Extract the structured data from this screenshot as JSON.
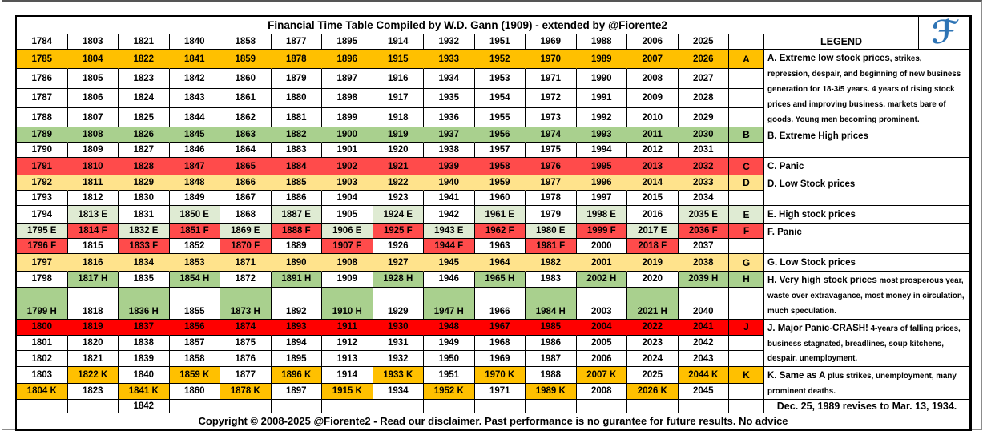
{
  "frame": {
    "title": "Financial Time Table Compiled by W.D. Gann (1909) - extended by @Fiorente2",
    "logo_glyph": "ℱ",
    "legend_header": "LEGEND",
    "footer": "Copyright © 2008-2025 @Fiorente2 -  Read our disclaimer. Past performance is no gurantee for future results. No advice"
  },
  "colors": {
    "A": "#FFC000",
    "B": "#A9D08E",
    "C": "#FF4B4B",
    "D": "#FFE38C",
    "E": "#DFEBD3",
    "F": "#FF4B4B",
    "G": "#FFE38C",
    "H": "#A9D08E",
    "J": "#FF0000",
    "K": "#FFC000",
    "W": "#FFFFFF"
  },
  "header_years": [
    "1784",
    "1803",
    "1821",
    "1840",
    "1858",
    "1877",
    "1895",
    "1914",
    "1932",
    "1951",
    "1969",
    "1988",
    "2006",
    "2025"
  ],
  "rows": [
    {
      "band": "A",
      "letter": "A",
      "letter_color": "A",
      "cells": [
        "1785",
        "1804",
        "1822",
        "1841",
        "1859",
        "1878",
        "1896",
        "1915",
        "1933",
        "1952",
        "1970",
        "1989",
        "2007",
        "2026"
      ],
      "legend": {
        "span": 4,
        "lead": "A. Extreme low stock prices",
        "rest": ", strikes, repression, despair, and beginning of new business generation for 18-3/5 years. 4 years of rising stock prices and improving business, markets bare of goods. Young men becoming prominent."
      }
    },
    {
      "cells": [
        "1786",
        "1805",
        "1823",
        "1842",
        "1860",
        "1879",
        "1897",
        "1916",
        "1934",
        "1953",
        "1971",
        "1990",
        "2008",
        "2027"
      ],
      "letter": ""
    },
    {
      "cells": [
        "1787",
        "1806",
        "1824",
        "1843",
        "1861",
        "1880",
        "1898",
        "1917",
        "1935",
        "1954",
        "1972",
        "1991",
        "2009",
        "2028"
      ],
      "letter": ""
    },
    {
      "cells": [
        "1788",
        "1807",
        "1825",
        "1844",
        "1862",
        "1881",
        "1899",
        "1918",
        "1936",
        "1955",
        "1973",
        "1992",
        "2010",
        "2029"
      ],
      "letter": ""
    },
    {
      "band": "B",
      "letter": "B",
      "letter_color": "B",
      "cells": [
        "1789",
        "1808",
        "1826",
        "1845",
        "1863",
        "1882",
        "1900",
        "1919",
        "1937",
        "1956",
        "1974",
        "1993",
        "2011",
        "2030"
      ],
      "legend": {
        "span": 2,
        "lead": "B. Extreme High prices",
        "rest": ""
      }
    },
    {
      "cells": [
        "1790",
        "1809",
        "1827",
        "1846",
        "1864",
        "1883",
        "1901",
        "1920",
        "1938",
        "1957",
        "1975",
        "1994",
        "2012",
        "2031"
      ],
      "letter": ""
    },
    {
      "band": "C",
      "letter": "C",
      "letter_color": "C",
      "cells": [
        "1791",
        "1810",
        "1828",
        "1847",
        "1865",
        "1884",
        "1902",
        "1921",
        "1939",
        "1958",
        "1976",
        "1995",
        "2013",
        "2032"
      ],
      "legend": {
        "span": 1,
        "lead": "C. Panic",
        "rest": ""
      }
    },
    {
      "band": "D",
      "letter": "D",
      "letter_color": "D",
      "cells": [
        "1792",
        "1811",
        "1829",
        "1848",
        "1866",
        "1885",
        "1903",
        "1922",
        "1940",
        "1959",
        "1977",
        "1996",
        "2014",
        "2033"
      ],
      "legend": {
        "span": 2,
        "lead": "D. Low Stock prices",
        "rest": ""
      }
    },
    {
      "cells": [
        "1793",
        "1812",
        "1830",
        "1849",
        "1867",
        "1886",
        "1904",
        "1923",
        "1941",
        "1960",
        "1978",
        "1997",
        "2015",
        "2034"
      ],
      "letter": ""
    },
    {
      "letter": "E",
      "letter_color": "E",
      "cells": [
        "1794",
        "1813 E",
        "1831",
        "1850 E",
        "1868",
        "1887 E",
        "1905",
        "1924 E",
        "1942",
        "1961 E",
        "1979",
        "1998 E",
        "2016",
        "2035 E"
      ],
      "cell_colors": [
        "W",
        "E",
        "W",
        "E",
        "W",
        "E",
        "W",
        "E",
        "W",
        "E",
        "W",
        "E",
        "W",
        "E"
      ],
      "legend": {
        "span": 1,
        "lead": "E. High stock prices",
        "rest": ""
      }
    },
    {
      "letter": "F",
      "letter_color": "F",
      "cells": [
        "1795 E",
        "1814 F",
        "1832 E",
        "1851 F",
        "1869 E",
        "1888 F",
        "1906 E",
        "1925 F",
        "1943 E",
        "1962 F",
        "1980 E",
        "1999 F",
        "2017 E",
        "2036 F"
      ],
      "cell_colors": [
        "E",
        "F",
        "E",
        "F",
        "E",
        "F",
        "E",
        "F",
        "E",
        "F",
        "E",
        "F",
        "E",
        "F"
      ],
      "legend": {
        "span": 2,
        "lead": "F. Panic",
        "rest": ""
      }
    },
    {
      "letter": "",
      "cells": [
        "1796 F",
        "1815",
        "1833 F",
        "1852",
        "1870 F",
        "1889",
        "1907 F",
        "1926",
        "1944 F",
        "1963",
        "1981 F",
        "2000",
        "2018 F",
        "2037"
      ],
      "cell_colors": [
        "F",
        "W",
        "F",
        "W",
        "F",
        "W",
        "F",
        "W",
        "F",
        "W",
        "F",
        "W",
        "F",
        "W"
      ]
    },
    {
      "band": "G",
      "letter": "G",
      "letter_color": "G",
      "cells": [
        "1797",
        "1816",
        "1834",
        "1853",
        "1871",
        "1890",
        "1908",
        "1927",
        "1945",
        "1964",
        "1982",
        "2001",
        "2019",
        "2038"
      ],
      "legend": {
        "span": 1,
        "lead": "G. Low Stock prices",
        "rest": ""
      }
    },
    {
      "letter": "H",
      "letter_color": "H",
      "cells": [
        "1798",
        "1817 H",
        "1835",
        "1854 H",
        "1872",
        "1891 H",
        "1909",
        "1928 H",
        "1946",
        "1965 H",
        "1983",
        "2002 H",
        "2020",
        "2039 H"
      ],
      "cell_colors": [
        "W",
        "H",
        "W",
        "H",
        "W",
        "H",
        "W",
        "H",
        "W",
        "H",
        "W",
        "H",
        "W",
        "H"
      ],
      "legend": {
        "span": 2,
        "lead": "H. Very high stock prices",
        "rest": " most prosperous year, waste over extravagance, most money in circulation, much speculation."
      }
    },
    {
      "letter": "",
      "tall": true,
      "cells": [
        "1799 H",
        "1818",
        "1836 H",
        "1855",
        "1873 H",
        "1892",
        "1910 H",
        "1929",
        "1947 H",
        "1966",
        "1984 H",
        "2003",
        "2021 H",
        "2040"
      ],
      "cell_colors": [
        "H",
        "W",
        "H",
        "W",
        "H",
        "W",
        "H",
        "W",
        "H",
        "W",
        "H",
        "W",
        "H",
        "W"
      ]
    },
    {
      "band": "J",
      "letter": "J",
      "letter_color": "J",
      "cells": [
        "1800",
        "1819",
        "1837",
        "1856",
        "1874",
        "1893",
        "1911",
        "1930",
        "1948",
        "1967",
        "1985",
        "2004",
        "2022",
        "2041"
      ],
      "legend": {
        "span": 3,
        "lead": "J. Major Panic-CRASH!",
        "rest": " 4-years of falling prices, business stagnated, breadlines, soup kitchens, despair, unemployment."
      }
    },
    {
      "cells": [
        "1801",
        "1820",
        "1838",
        "1857",
        "1875",
        "1894",
        "1912",
        "1931",
        "1949",
        "1968",
        "1986",
        "2005",
        "2023",
        "2042"
      ],
      "letter": ""
    },
    {
      "cells": [
        "1802",
        "1821",
        "1839",
        "1858",
        "1876",
        "1895",
        "1913",
        "1932",
        "1950",
        "1969",
        "1987",
        "2006",
        "2024",
        "2043"
      ],
      "letter": ""
    },
    {
      "letter": "K",
      "letter_color": "K",
      "cells": [
        "1803",
        "1822 K",
        "1840",
        "1859 K",
        "1877",
        "1896 K",
        "1914",
        "1933 K",
        "1951",
        "1970 K",
        "1988",
        "2007 K",
        "2025",
        "2044 K"
      ],
      "cell_colors": [
        "W",
        "K",
        "W",
        "K",
        "W",
        "K",
        "W",
        "K",
        "W",
        "K",
        "W",
        "K",
        "W",
        "K"
      ],
      "legend": {
        "span": 2,
        "lead": "K. Same as A",
        "rest": " plus strikes, unemployment, many prominent deaths."
      }
    },
    {
      "letter": "",
      "cells": [
        "1804 K",
        "1823",
        "1841 K",
        "1860",
        "1878 K",
        "1897",
        "1915 K",
        "1934",
        "1952 K",
        "1971",
        "1989 K",
        "2008",
        "2026 K",
        "2045"
      ],
      "cell_colors": [
        "K",
        "W",
        "K",
        "W",
        "K",
        "W",
        "K",
        "W",
        "K",
        "W",
        "K",
        "W",
        "K",
        "W"
      ]
    }
  ],
  "note_row": {
    "cells": [
      "",
      "",
      "1842",
      "",
      "",
      "",
      "",
      "",
      "",
      "",
      "",
      "",
      "",
      ""
    ],
    "note": "Dec. 25, 1989 revises to Mar. 13, 1934."
  }
}
